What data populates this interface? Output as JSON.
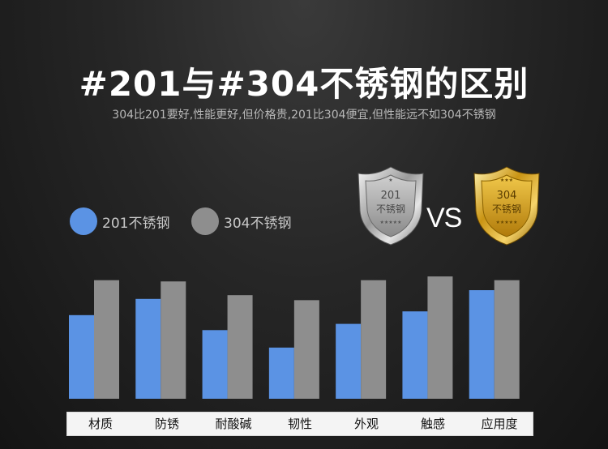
{
  "header": {
    "title": "#201与#304不锈钢的区别",
    "subtitle": "304比201要好,性能更好,但价格贵,201比304便宜,但性能远不如304不锈钢"
  },
  "legend": [
    {
      "label": "201不锈钢",
      "color": "#5b93e4"
    },
    {
      "label": "304不锈钢",
      "color": "#8e8e8e"
    }
  ],
  "badges": {
    "left": {
      "line1": "201",
      "line2": "不锈钢"
    },
    "vs": "VS",
    "right": {
      "line1": "304",
      "line2": "不锈钢"
    }
  },
  "chart_data": {
    "type": "bar",
    "categories": [
      "材质",
      "防锈",
      "耐酸碱",
      "韧性",
      "外观",
      "触感",
      "应用度"
    ],
    "series": [
      {
        "name": "201不锈钢",
        "values": [
          67,
          80,
          55,
          41,
          60,
          70,
          87
        ]
      },
      {
        "name": "304不锈钢",
        "values": [
          95,
          94,
          83,
          79,
          95,
          98,
          95
        ]
      }
    ],
    "ylim": [
      0,
      100
    ],
    "colors": [
      "#5b93e4",
      "#8e8e8e"
    ],
    "grid": false,
    "legend_position": "top-left"
  }
}
